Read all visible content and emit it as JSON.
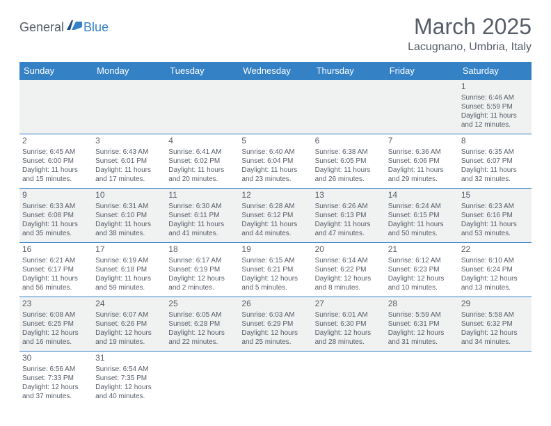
{
  "logo": {
    "general": "General",
    "blue": "Blue"
  },
  "title": "March 2025",
  "subtitle": "Lacugnano, Umbria, Italy",
  "weekdays": [
    "Sunday",
    "Monday",
    "Tuesday",
    "Wednesday",
    "Thursday",
    "Friday",
    "Saturday"
  ],
  "colors": {
    "primary": "#3581c6",
    "text": "#565d67",
    "row_alt": "#f0f1f1",
    "background": "#ffffff"
  },
  "startWeekday": 6,
  "days": [
    {
      "n": 1,
      "sunrise": "6:46 AM",
      "sunset": "5:59 PM",
      "dl_h": 11,
      "dl_m": 12
    },
    {
      "n": 2,
      "sunrise": "6:45 AM",
      "sunset": "6:00 PM",
      "dl_h": 11,
      "dl_m": 15
    },
    {
      "n": 3,
      "sunrise": "6:43 AM",
      "sunset": "6:01 PM",
      "dl_h": 11,
      "dl_m": 17
    },
    {
      "n": 4,
      "sunrise": "6:41 AM",
      "sunset": "6:02 PM",
      "dl_h": 11,
      "dl_m": 20
    },
    {
      "n": 5,
      "sunrise": "6:40 AM",
      "sunset": "6:04 PM",
      "dl_h": 11,
      "dl_m": 23
    },
    {
      "n": 6,
      "sunrise": "6:38 AM",
      "sunset": "6:05 PM",
      "dl_h": 11,
      "dl_m": 26
    },
    {
      "n": 7,
      "sunrise": "6:36 AM",
      "sunset": "6:06 PM",
      "dl_h": 11,
      "dl_m": 29
    },
    {
      "n": 8,
      "sunrise": "6:35 AM",
      "sunset": "6:07 PM",
      "dl_h": 11,
      "dl_m": 32
    },
    {
      "n": 9,
      "sunrise": "6:33 AM",
      "sunset": "6:08 PM",
      "dl_h": 11,
      "dl_m": 35
    },
    {
      "n": 10,
      "sunrise": "6:31 AM",
      "sunset": "6:10 PM",
      "dl_h": 11,
      "dl_m": 38
    },
    {
      "n": 11,
      "sunrise": "6:30 AM",
      "sunset": "6:11 PM",
      "dl_h": 11,
      "dl_m": 41
    },
    {
      "n": 12,
      "sunrise": "6:28 AM",
      "sunset": "6:12 PM",
      "dl_h": 11,
      "dl_m": 44
    },
    {
      "n": 13,
      "sunrise": "6:26 AM",
      "sunset": "6:13 PM",
      "dl_h": 11,
      "dl_m": 47
    },
    {
      "n": 14,
      "sunrise": "6:24 AM",
      "sunset": "6:15 PM",
      "dl_h": 11,
      "dl_m": 50
    },
    {
      "n": 15,
      "sunrise": "6:23 AM",
      "sunset": "6:16 PM",
      "dl_h": 11,
      "dl_m": 53
    },
    {
      "n": 16,
      "sunrise": "6:21 AM",
      "sunset": "6:17 PM",
      "dl_h": 11,
      "dl_m": 56
    },
    {
      "n": 17,
      "sunrise": "6:19 AM",
      "sunset": "6:18 PM",
      "dl_h": 11,
      "dl_m": 59
    },
    {
      "n": 18,
      "sunrise": "6:17 AM",
      "sunset": "6:19 PM",
      "dl_h": 12,
      "dl_m": 2
    },
    {
      "n": 19,
      "sunrise": "6:15 AM",
      "sunset": "6:21 PM",
      "dl_h": 12,
      "dl_m": 5
    },
    {
      "n": 20,
      "sunrise": "6:14 AM",
      "sunset": "6:22 PM",
      "dl_h": 12,
      "dl_m": 8
    },
    {
      "n": 21,
      "sunrise": "6:12 AM",
      "sunset": "6:23 PM",
      "dl_h": 12,
      "dl_m": 10
    },
    {
      "n": 22,
      "sunrise": "6:10 AM",
      "sunset": "6:24 PM",
      "dl_h": 12,
      "dl_m": 13
    },
    {
      "n": 23,
      "sunrise": "6:08 AM",
      "sunset": "6:25 PM",
      "dl_h": 12,
      "dl_m": 16
    },
    {
      "n": 24,
      "sunrise": "6:07 AM",
      "sunset": "6:26 PM",
      "dl_h": 12,
      "dl_m": 19
    },
    {
      "n": 25,
      "sunrise": "6:05 AM",
      "sunset": "6:28 PM",
      "dl_h": 12,
      "dl_m": 22
    },
    {
      "n": 26,
      "sunrise": "6:03 AM",
      "sunset": "6:29 PM",
      "dl_h": 12,
      "dl_m": 25
    },
    {
      "n": 27,
      "sunrise": "6:01 AM",
      "sunset": "6:30 PM",
      "dl_h": 12,
      "dl_m": 28
    },
    {
      "n": 28,
      "sunrise": "5:59 AM",
      "sunset": "6:31 PM",
      "dl_h": 12,
      "dl_m": 31
    },
    {
      "n": 29,
      "sunrise": "5:58 AM",
      "sunset": "6:32 PM",
      "dl_h": 12,
      "dl_m": 34
    },
    {
      "n": 30,
      "sunrise": "6:56 AM",
      "sunset": "7:33 PM",
      "dl_h": 12,
      "dl_m": 37
    },
    {
      "n": 31,
      "sunrise": "6:54 AM",
      "sunset": "7:35 PM",
      "dl_h": 12,
      "dl_m": 40
    }
  ]
}
